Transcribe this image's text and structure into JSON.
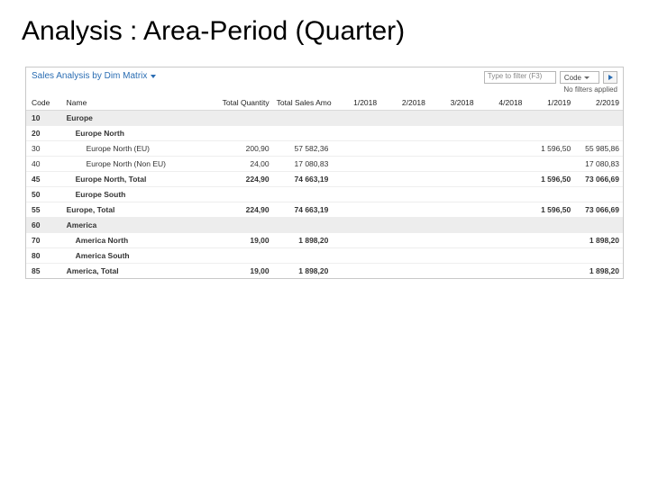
{
  "slide": {
    "title": "Analysis : Area-Period (Quarter)"
  },
  "panel": {
    "title": "Sales Analysis by Dim Matrix",
    "filter_placeholder": "Type to filter (F3)",
    "select_label": "Code",
    "no_filter_text": "No filters applied"
  },
  "colors": {
    "panel_title": "#2a6db3",
    "border": "#c9c9c9",
    "group_bg": "#ededed",
    "row_line": "#eeeeee",
    "text": "#333333",
    "background": "#ffffff"
  },
  "columns": {
    "code": "Code",
    "name": "Name",
    "total_quantity": "Total Quantity",
    "total_sales_amount": "Total Sales Amount",
    "p1": "1/2018",
    "p2": "2/2018",
    "p3": "3/2018",
    "p4": "4/2018",
    "p5": "1/2019",
    "p6": "2/2019"
  },
  "rows": [
    {
      "style": "group",
      "code": "10",
      "name": "Europe",
      "indent": 0
    },
    {
      "style": "boldrow",
      "code": "20",
      "name": "Europe North",
      "indent": 1
    },
    {
      "style": "plain",
      "code": "30",
      "name": "Europe North (EU)",
      "indent": 2,
      "tq": "200,90",
      "tsa": "57 582,36",
      "p5": "1 596,50",
      "p6": "55 985,86"
    },
    {
      "style": "plain",
      "code": "40",
      "name": "Europe North (Non EU)",
      "indent": 2,
      "tq": "24,00",
      "tsa": "17 080,83",
      "p6": "17 080,83"
    },
    {
      "style": "boldrow",
      "code": "45",
      "name": "Europe North, Total",
      "indent": 1,
      "tq": "224,90",
      "tsa": "74 663,19",
      "p5": "1 596,50",
      "p6": "73 066,69"
    },
    {
      "style": "boldrow",
      "code": "50",
      "name": "Europe South",
      "indent": 1
    },
    {
      "style": "total",
      "code": "55",
      "name": "Europe, Total",
      "indent": 0,
      "tq": "224,90",
      "tsa": "74 663,19",
      "p5": "1 596,50",
      "p6": "73 066,69"
    },
    {
      "style": "group",
      "code": "60",
      "name": "America",
      "indent": 0
    },
    {
      "style": "boldrow",
      "code": "70",
      "name": "America North",
      "indent": 1,
      "tq": "19,00",
      "tsa": "1 898,20",
      "p6": "1 898,20"
    },
    {
      "style": "boldrow",
      "code": "80",
      "name": "America South",
      "indent": 1
    },
    {
      "style": "total",
      "code": "85",
      "name": "America, Total",
      "indent": 0,
      "tq": "19,00",
      "tsa": "1 898,20",
      "p6": "1 898,20"
    }
  ]
}
